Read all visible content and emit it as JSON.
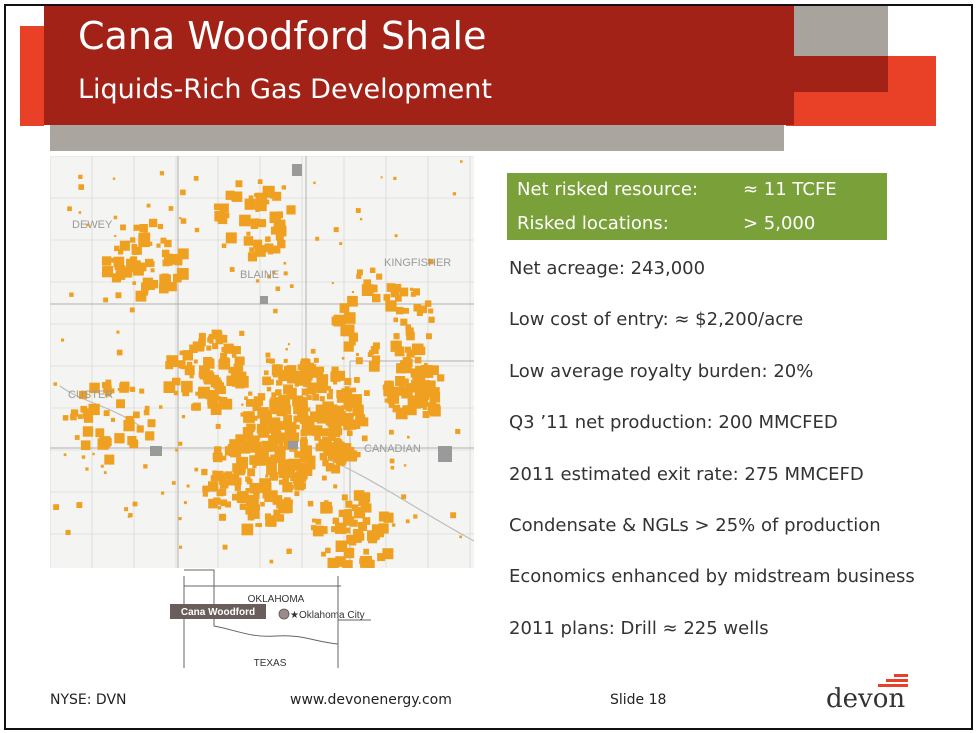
{
  "header": {
    "title": "Cana Woodford Shale",
    "subtitle": "Liquids-Rich Gas Development"
  },
  "map": {
    "county_labels": [
      "DEWEY",
      "BLAINE",
      "KINGFISHER",
      "CUSTER",
      "CANADIAN"
    ],
    "acreage_color": "#f0a020",
    "inset": {
      "state_label": "OKLAHOMA",
      "area_label": "Cana Woodford",
      "city_label": "Oklahoma City",
      "south_label": "TEXAS"
    }
  },
  "highlight": {
    "rows": [
      {
        "label": "Net risked resource:",
        "value": "≈ 11 TCFE"
      },
      {
        "label": "Risked locations:",
        "value": "> 5,000"
      }
    ],
    "color": "#7aa03a"
  },
  "bullets": [
    "Net acreage: 243,000",
    "Low cost of entry: ≈ $2,200/acre",
    "Low average royalty burden: 20%",
    "Q3 ’11 net production: 200 MMCFED",
    "2011 estimated exit rate: 275 MMCEFD",
    "Condensate & NGLs > 25% of production",
    "Economics enhanced by midstream business",
    "2011 plans: Drill ≈ 225 wells"
  ],
  "footer": {
    "ticker": "NYSE: DVN",
    "website": "www.devonenergy.com",
    "slide": "Slide 18",
    "logo_text": "devon"
  },
  "colors": {
    "brand_red": "#a22217",
    "brand_orange": "#e84127",
    "band_grey": "#aaa59e"
  }
}
